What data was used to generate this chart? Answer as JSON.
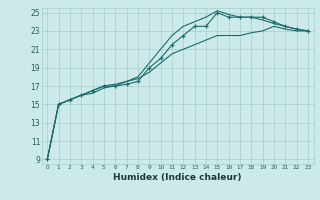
{
  "title": "",
  "xlabel": "Humidex (Indice chaleur)",
  "bg_color": "#cceaea",
  "grid_color": "#aacccc",
  "line_color": "#1a6b6b",
  "xlim": [
    -0.5,
    23.5
  ],
  "ylim": [
    8.5,
    25.5
  ],
  "yticks": [
    9,
    11,
    13,
    15,
    17,
    19,
    21,
    23,
    25
  ],
  "xticks": [
    0,
    1,
    2,
    3,
    4,
    5,
    6,
    7,
    8,
    9,
    10,
    11,
    12,
    13,
    14,
    15,
    16,
    17,
    18,
    19,
    20,
    21,
    22,
    23
  ],
  "series": [
    {
      "x": [
        0,
        1,
        2,
        3,
        4,
        5,
        6,
        7,
        8,
        9,
        10,
        11,
        12,
        13,
        14,
        15,
        16,
        17,
        18,
        19,
        20,
        21,
        22,
        23
      ],
      "y": [
        9,
        15,
        15.5,
        16,
        16.5,
        17,
        17,
        17.2,
        17.5,
        19,
        20,
        21.5,
        22.5,
        23.5,
        23.5,
        25.0,
        24.5,
        24.5,
        24.5,
        24.5,
        24.0,
        23.5,
        23.2,
        23.0
      ],
      "marker": "+"
    },
    {
      "x": [
        0,
        1,
        2,
        3,
        4,
        5,
        6,
        7,
        8,
        9,
        10,
        11,
        12,
        13,
        14,
        15,
        16,
        17,
        18,
        19,
        20,
        21,
        22,
        23
      ],
      "y": [
        9,
        15,
        15.5,
        16,
        16.5,
        17,
        17.2,
        17.5,
        18.0,
        19.5,
        21.0,
        22.5,
        23.5,
        24.0,
        24.5,
        25.2,
        24.8,
        24.5,
        24.5,
        24.2,
        23.8,
        23.5,
        23.2,
        23.0
      ],
      "marker": null
    },
    {
      "x": [
        0,
        1,
        2,
        3,
        4,
        5,
        6,
        7,
        8,
        9,
        10,
        11,
        12,
        13,
        14,
        15,
        16,
        17,
        18,
        19,
        20,
        21,
        22,
        23
      ],
      "y": [
        9,
        15,
        15.5,
        16,
        16.2,
        16.8,
        17.0,
        17.5,
        17.8,
        18.5,
        19.5,
        20.5,
        21.0,
        21.5,
        22.0,
        22.5,
        22.5,
        22.5,
        22.8,
        23.0,
        23.5,
        23.2,
        23.0,
        23.0
      ],
      "marker": null
    }
  ]
}
